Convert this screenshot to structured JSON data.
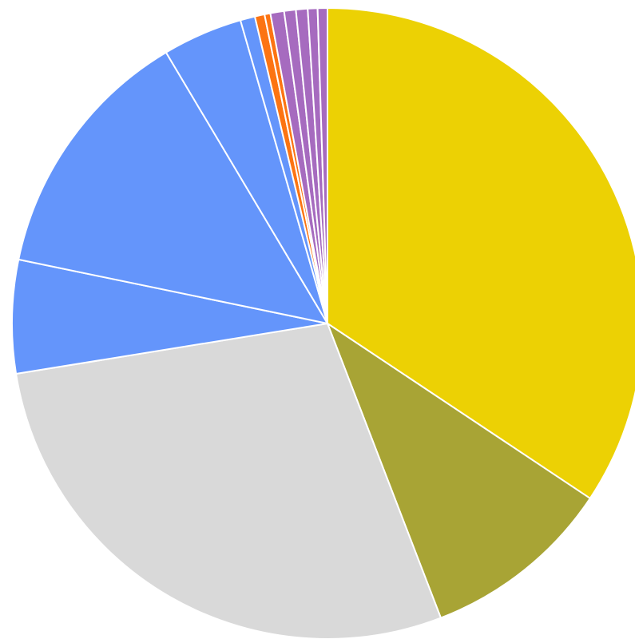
{
  "chart_data": {
    "type": "pie",
    "values": [
      34.35,
      9.8,
      28.3,
      5.8,
      13.2,
      4.1,
      0.75,
      0.5,
      0.3,
      0.7,
      0.6,
      0.6,
      0.5,
      0.5
    ],
    "colors": [
      "#ecd104",
      "#a8a435",
      "#d9d9d9",
      "#6495fb",
      "#6495fb",
      "#6495fb",
      "#6495fb",
      "#fc7412",
      "#fc7412",
      "#a66bbf",
      "#a66bbf",
      "#a66bbf",
      "#a66bbf",
      "#a66bbf"
    ]
  }
}
